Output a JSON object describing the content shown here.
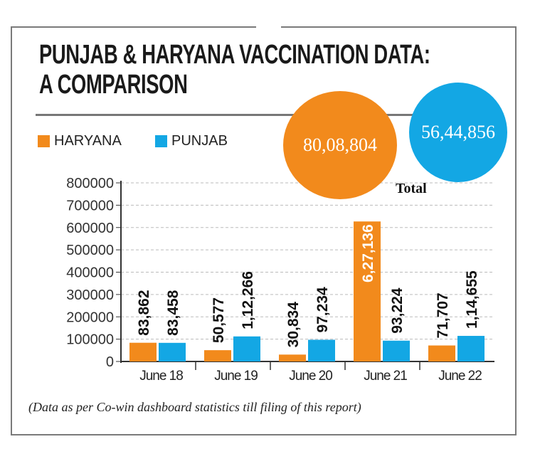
{
  "title_line1": "PUNJAB & HARYANA VACCINATION DATA:",
  "title_line2": "A COMPARISON",
  "totals": {
    "label": "Total",
    "haryana": "80,08,804",
    "punjab": "56,44,856"
  },
  "footnote": "(Data as per Co-win dashboard statistics till filing of this report)",
  "colors": {
    "haryana": "#f28a1c",
    "punjab": "#13a7e4"
  },
  "chart_data": {
    "type": "bar",
    "categories": [
      "June 18",
      "June 19",
      "June 20",
      "June 21",
      "June 22"
    ],
    "series": [
      {
        "name": "HARYANA",
        "values": [
          83862,
          50577,
          30834,
          627136,
          71707
        ],
        "labels": [
          "83,862",
          "50,577",
          "30,834",
          "6,27,136",
          "71,707"
        ]
      },
      {
        "name": "PUNJAB",
        "values": [
          83458,
          112266,
          97234,
          93224,
          114655
        ],
        "labels": [
          "83,458",
          "1,12,266",
          "97,234",
          "93,224",
          "1,14,655"
        ]
      }
    ],
    "ylim": [
      0,
      800000
    ],
    "yticks": [
      "0",
      "100000",
      "200000",
      "300000",
      "400000",
      "500000",
      "600000",
      "700000",
      "800000"
    ],
    "grid": true,
    "legend": "top-left"
  }
}
